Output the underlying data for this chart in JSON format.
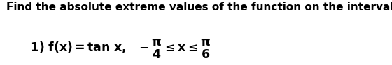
{
  "line1": "Find the absolute extreme values of the function on the interval.",
  "bg_color": "#ffffff",
  "text_color": "#000000",
  "font_size_line1": 11.0,
  "font_size_line2": 12.5,
  "fig_width": 5.6,
  "fig_height": 0.94,
  "dpi": 100
}
